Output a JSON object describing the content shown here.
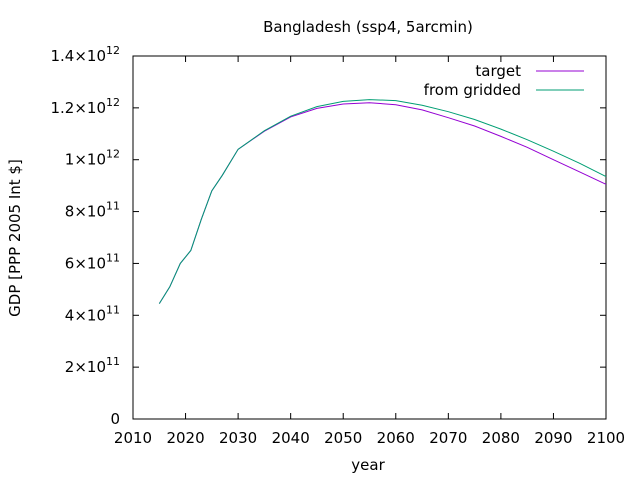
{
  "chart_data": {
    "type": "line",
    "title": "Bangladesh (ssp4, 5arcmin)",
    "xlabel": "year",
    "ylabel": "GDP [PPP 2005 Int $]",
    "xlim": [
      2010,
      2100
    ],
    "ylim": [
      0,
      1400000000000.0
    ],
    "grid": false,
    "legend_position": "top-right",
    "x_ticks": [
      {
        "label": "2010",
        "value": 2010
      },
      {
        "label": "2020",
        "value": 2020
      },
      {
        "label": "2030",
        "value": 2030
      },
      {
        "label": "2040",
        "value": 2040
      },
      {
        "label": "2050",
        "value": 2050
      },
      {
        "label": "2060",
        "value": 2060
      },
      {
        "label": "2070",
        "value": 2070
      },
      {
        "label": "2080",
        "value": 2080
      },
      {
        "label": "2090",
        "value": 2090
      },
      {
        "label": "2100",
        "value": 2100
      }
    ],
    "y_ticks": [
      {
        "mant": "0",
        "exp": "",
        "value": 0
      },
      {
        "mant": "2×10",
        "exp": "11",
        "value": 200000000000.0
      },
      {
        "mant": "4×10",
        "exp": "11",
        "value": 400000000000.0
      },
      {
        "mant": "6×10",
        "exp": "11",
        "value": 600000000000.0
      },
      {
        "mant": "8×10",
        "exp": "11",
        "value": 800000000000.0
      },
      {
        "mant": "1×10",
        "exp": "12",
        "value": 1000000000000.0
      },
      {
        "mant": "1.2×10",
        "exp": "12",
        "value": 1200000000000.0
      },
      {
        "mant": "1.4×10",
        "exp": "12",
        "value": 1400000000000.0
      }
    ],
    "series": [
      {
        "name": "target",
        "color": "#9400d3",
        "x": [
          2015,
          2017,
          2019,
          2021,
          2023,
          2025,
          2027,
          2030,
          2035,
          2040,
          2045,
          2050,
          2055,
          2060,
          2065,
          2070,
          2075,
          2080,
          2085,
          2090,
          2095,
          2100
        ],
        "y": [
          445000000000.0,
          510000000000.0,
          600000000000.0,
          650000000000.0,
          770000000000.0,
          880000000000.0,
          940000000000.0,
          1040000000000.0,
          1110000000000.0,
          1165000000000.0,
          1198000000000.0,
          1215000000000.0,
          1220000000000.0,
          1212000000000.0,
          1192000000000.0,
          1162000000000.0,
          1130000000000.0,
          1090000000000.0,
          1048000000000.0,
          1000000000000.0,
          953000000000.0,
          905000000000.0
        ]
      },
      {
        "name": "from gridded",
        "color": "#009e73",
        "x": [
          2015,
          2017,
          2019,
          2021,
          2023,
          2025,
          2027,
          2030,
          2035,
          2040,
          2045,
          2050,
          2055,
          2060,
          2065,
          2070,
          2075,
          2080,
          2085,
          2090,
          2095,
          2100
        ],
        "y": [
          445000000000.0,
          510000000000.0,
          600000000000.0,
          650000000000.0,
          770000000000.0,
          880000000000.0,
          940000000000.0,
          1040000000000.0,
          1112000000000.0,
          1168000000000.0,
          1205000000000.0,
          1225000000000.0,
          1232000000000.0,
          1228000000000.0,
          1210000000000.0,
          1185000000000.0,
          1155000000000.0,
          1118000000000.0,
          1077000000000.0,
          1033000000000.0,
          986000000000.0,
          935000000000.0
        ]
      }
    ]
  }
}
